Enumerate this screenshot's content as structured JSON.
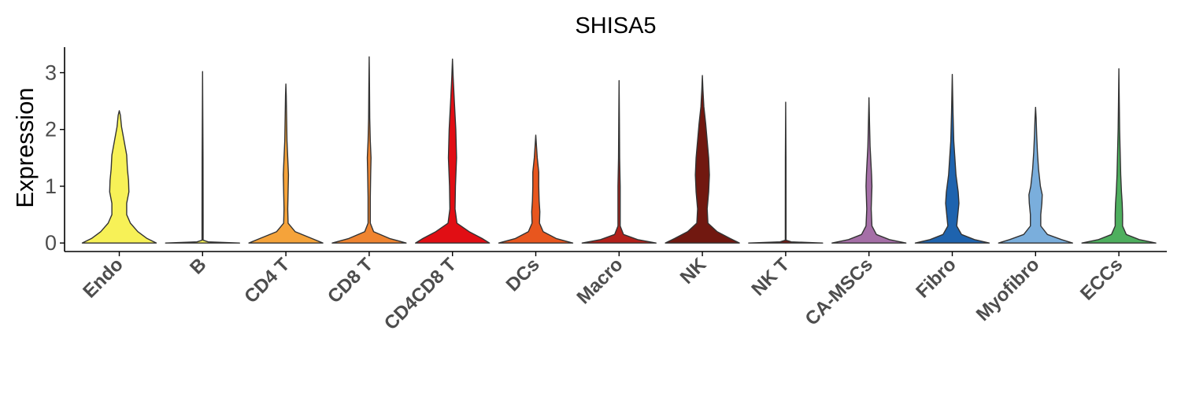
{
  "chart_data": {
    "type": "violin",
    "title": "SHISA5",
    "xlabel": "",
    "ylabel": "Expression",
    "ylim": [
      -0.15,
      3.45
    ],
    "yticks": [
      "0",
      "1",
      "2",
      "3"
    ],
    "grid": false,
    "legend": "none",
    "categories": [
      "Endo",
      "B",
      "CD4 T",
      "CD8 T",
      "CD4CD8 T",
      "DCs",
      "Macro",
      "NK",
      "NK T",
      "CA-MSCs",
      "Fibro",
      "Myofibro",
      "ECCs"
    ],
    "series": [
      {
        "category": "Endo",
        "color": "#F7F157",
        "max": 2.33,
        "density": [
          [
            0.0,
            1.0
          ],
          [
            0.08,
            0.75
          ],
          [
            0.2,
            0.5
          ],
          [
            0.35,
            0.3
          ],
          [
            0.5,
            0.2
          ],
          [
            0.7,
            0.2
          ],
          [
            0.9,
            0.26
          ],
          [
            1.1,
            0.25
          ],
          [
            1.3,
            0.22
          ],
          [
            1.55,
            0.2
          ],
          [
            1.8,
            0.13
          ],
          [
            2.05,
            0.06
          ],
          [
            2.25,
            0.03
          ],
          [
            2.33,
            0.0
          ]
        ]
      },
      {
        "category": "B",
        "color": "#F7F157",
        "max": 3.02,
        "density": [
          [
            0.0,
            1.0
          ],
          [
            0.02,
            0.15
          ],
          [
            0.05,
            0.015
          ],
          [
            0.5,
            0.015
          ],
          [
            1.5,
            0.012
          ],
          [
            3.02,
            0.0
          ]
        ]
      },
      {
        "category": "CD4 T",
        "color": "#F5A33A",
        "max": 2.8,
        "density": [
          [
            0.0,
            1.0
          ],
          [
            0.08,
            0.7
          ],
          [
            0.2,
            0.25
          ],
          [
            0.35,
            0.06
          ],
          [
            0.6,
            0.05
          ],
          [
            0.9,
            0.06
          ],
          [
            1.2,
            0.07
          ],
          [
            1.5,
            0.05
          ],
          [
            1.8,
            0.03
          ],
          [
            2.2,
            0.02
          ],
          [
            2.6,
            0.01
          ],
          [
            2.8,
            0.0
          ]
        ]
      },
      {
        "category": "CD8 T",
        "color": "#EF8430",
        "max": 3.28,
        "density": [
          [
            0.0,
            1.0
          ],
          [
            0.08,
            0.55
          ],
          [
            0.2,
            0.12
          ],
          [
            0.35,
            0.03
          ],
          [
            0.8,
            0.03
          ],
          [
            1.2,
            0.04
          ],
          [
            1.5,
            0.05
          ],
          [
            1.8,
            0.03
          ],
          [
            2.2,
            0.015
          ],
          [
            2.8,
            0.008
          ],
          [
            3.28,
            0.0
          ]
        ]
      },
      {
        "category": "CD4CD8 T",
        "color": "#E10E14",
        "max": 3.24,
        "density": [
          [
            0.0,
            1.0
          ],
          [
            0.08,
            0.8
          ],
          [
            0.2,
            0.45
          ],
          [
            0.35,
            0.12
          ],
          [
            0.6,
            0.07
          ],
          [
            1.0,
            0.08
          ],
          [
            1.5,
            0.11
          ],
          [
            2.0,
            0.09
          ],
          [
            2.5,
            0.05
          ],
          [
            2.9,
            0.02
          ],
          [
            3.24,
            0.0
          ]
        ]
      },
      {
        "category": "DCs",
        "color": "#E8561E",
        "max": 1.9,
        "density": [
          [
            0.0,
            1.0
          ],
          [
            0.08,
            0.55
          ],
          [
            0.2,
            0.2
          ],
          [
            0.35,
            0.1
          ],
          [
            0.55,
            0.11
          ],
          [
            0.75,
            0.09
          ],
          [
            1.0,
            0.08
          ],
          [
            1.25,
            0.08
          ],
          [
            1.5,
            0.04
          ],
          [
            1.7,
            0.02
          ],
          [
            1.9,
            0.0
          ]
        ]
      },
      {
        "category": "Macro",
        "color": "#B3201A",
        "max": 2.86,
        "density": [
          [
            0.0,
            1.0
          ],
          [
            0.06,
            0.5
          ],
          [
            0.15,
            0.12
          ],
          [
            0.3,
            0.03
          ],
          [
            0.7,
            0.03
          ],
          [
            1.0,
            0.03
          ],
          [
            1.5,
            0.015
          ],
          [
            2.2,
            0.008
          ],
          [
            2.86,
            0.0
          ]
        ]
      },
      {
        "category": "NK",
        "color": "#711810",
        "max": 2.95,
        "density": [
          [
            0.0,
            1.0
          ],
          [
            0.08,
            0.75
          ],
          [
            0.2,
            0.4
          ],
          [
            0.35,
            0.15
          ],
          [
            0.6,
            0.13
          ],
          [
            0.9,
            0.17
          ],
          [
            1.2,
            0.19
          ],
          [
            1.5,
            0.17
          ],
          [
            1.8,
            0.13
          ],
          [
            2.1,
            0.09
          ],
          [
            2.4,
            0.04
          ],
          [
            2.7,
            0.015
          ],
          [
            2.95,
            0.0
          ]
        ]
      },
      {
        "category": "NK T",
        "color": "#711810",
        "max": 2.48,
        "density": [
          [
            0.0,
            1.0
          ],
          [
            0.02,
            0.15
          ],
          [
            0.05,
            0.01
          ],
          [
            0.5,
            0.01
          ],
          [
            1.5,
            0.008
          ],
          [
            2.48,
            0.0
          ]
        ]
      },
      {
        "category": "CA-MSCs",
        "color": "#A56FA7",
        "max": 2.56,
        "density": [
          [
            0.0,
            1.0
          ],
          [
            0.06,
            0.55
          ],
          [
            0.15,
            0.2
          ],
          [
            0.3,
            0.08
          ],
          [
            0.6,
            0.06
          ],
          [
            0.8,
            0.07
          ],
          [
            1.0,
            0.08
          ],
          [
            1.2,
            0.07
          ],
          [
            1.45,
            0.05
          ],
          [
            1.7,
            0.03
          ],
          [
            2.1,
            0.015
          ],
          [
            2.56,
            0.0
          ]
        ]
      },
      {
        "category": "Fibro",
        "color": "#1E63AE",
        "max": 2.97,
        "density": [
          [
            0.0,
            1.0
          ],
          [
            0.06,
            0.6
          ],
          [
            0.15,
            0.25
          ],
          [
            0.3,
            0.12
          ],
          [
            0.5,
            0.15
          ],
          [
            0.7,
            0.18
          ],
          [
            0.9,
            0.16
          ],
          [
            1.2,
            0.1
          ],
          [
            1.5,
            0.07
          ],
          [
            1.8,
            0.04
          ],
          [
            2.3,
            0.02
          ],
          [
            2.97,
            0.0
          ]
        ]
      },
      {
        "category": "Myofibro",
        "color": "#7AAEDC",
        "max": 2.39,
        "density": [
          [
            0.0,
            1.0
          ],
          [
            0.06,
            0.7
          ],
          [
            0.15,
            0.32
          ],
          [
            0.3,
            0.14
          ],
          [
            0.5,
            0.14
          ],
          [
            0.7,
            0.17
          ],
          [
            0.85,
            0.18
          ],
          [
            1.0,
            0.13
          ],
          [
            1.3,
            0.08
          ],
          [
            1.6,
            0.05
          ],
          [
            1.9,
            0.03
          ],
          [
            2.2,
            0.015
          ],
          [
            2.39,
            0.0
          ]
        ]
      },
      {
        "category": "ECCs",
        "color": "#4EAF5E",
        "max": 3.07,
        "density": [
          [
            0.0,
            1.0
          ],
          [
            0.06,
            0.55
          ],
          [
            0.15,
            0.2
          ],
          [
            0.3,
            0.1
          ],
          [
            0.5,
            0.1
          ],
          [
            0.7,
            0.09
          ],
          [
            0.9,
            0.07
          ],
          [
            1.2,
            0.05
          ],
          [
            1.6,
            0.035
          ],
          [
            2.0,
            0.02
          ],
          [
            2.5,
            0.01
          ],
          [
            3.07,
            0.0
          ]
        ]
      }
    ]
  }
}
